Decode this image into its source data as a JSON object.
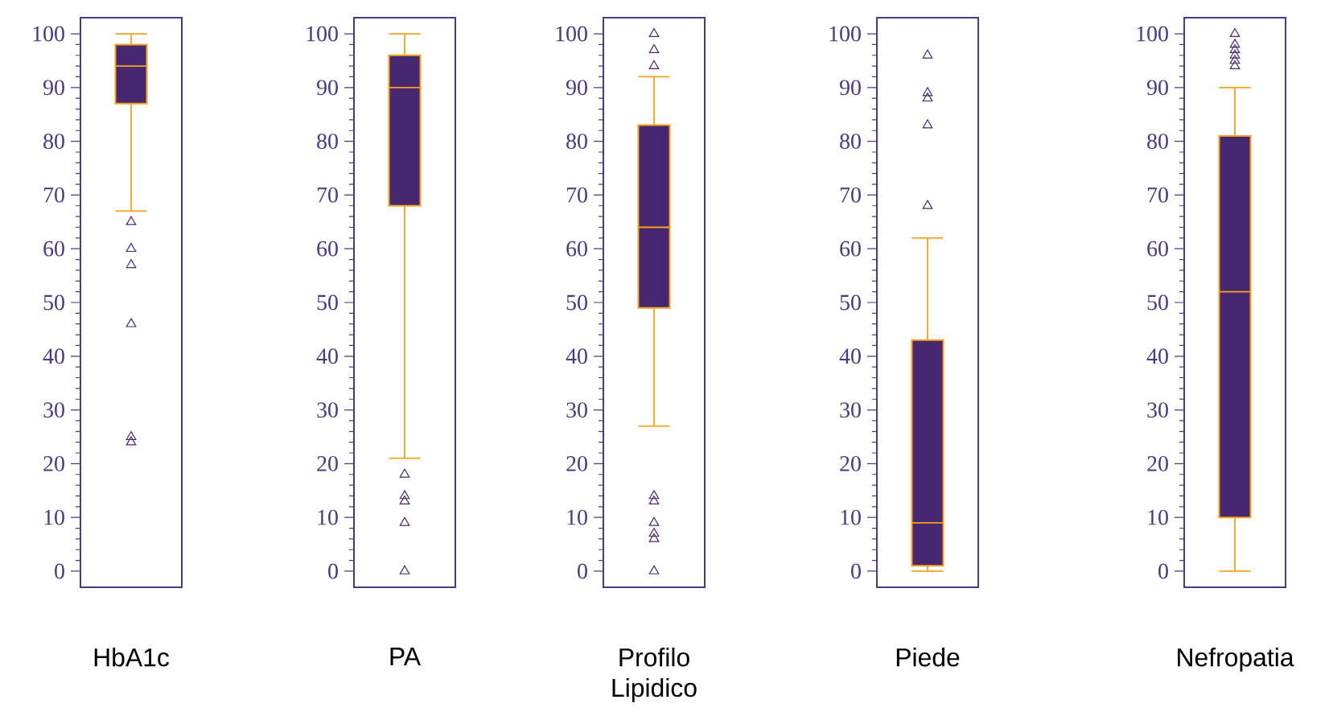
{
  "chart_data": [
    {
      "type": "box",
      "categories": [
        "HbA1c"
      ],
      "color": "#472870",
      "marker": "triangle",
      "ylim": [
        -3,
        103
      ],
      "yticks": [
        0,
        10,
        20,
        30,
        40,
        50,
        60,
        70,
        80,
        90,
        100
      ],
      "boxes": [
        {
          "low": 67,
          "q1": 87,
          "median": 94,
          "q3": 98,
          "high": 100,
          "outliers": [
            65,
            60,
            57,
            46,
            25,
            24
          ]
        }
      ]
    },
    {
      "type": "box",
      "categories": [
        "PA"
      ],
      "color": "#472870",
      "marker": "triangle",
      "ylim": [
        -3,
        103
      ],
      "yticks": [
        0,
        10,
        20,
        30,
        40,
        50,
        60,
        70,
        80,
        90,
        100
      ],
      "boxes": [
        {
          "low": 21,
          "q1": 68,
          "median": 90,
          "q3": 96,
          "high": 100,
          "outliers": [
            18,
            14,
            13,
            9,
            0
          ]
        }
      ]
    },
    {
      "type": "box",
      "categories": [
        "Profilo Lipidico"
      ],
      "color": "#472870",
      "marker": "triangle",
      "ylim": [
        -3,
        103
      ],
      "yticks": [
        0,
        10,
        20,
        30,
        40,
        50,
        60,
        70,
        80,
        90,
        100
      ],
      "boxes": [
        {
          "low": 27,
          "q1": 49,
          "median": 64,
          "q3": 83,
          "high": 92,
          "outliers": [
            100,
            97,
            94,
            14,
            13,
            9,
            7,
            6,
            0
          ]
        }
      ]
    },
    {
      "type": "box",
      "categories": [
        "Piede"
      ],
      "color": "#472870",
      "marker": "triangle",
      "ylim": [
        -3,
        103
      ],
      "yticks": [
        0,
        10,
        20,
        30,
        40,
        50,
        60,
        70,
        80,
        90,
        100
      ],
      "boxes": [
        {
          "low": 0,
          "q1": 1,
          "median": 9,
          "q3": 43,
          "high": 62,
          "outliers": [
            96,
            89,
            88,
            83,
            68
          ]
        }
      ]
    },
    {
      "type": "box",
      "categories": [
        "Nefropatia"
      ],
      "color": "#472870",
      "marker": "triangle",
      "ylim": [
        -3,
        103
      ],
      "yticks": [
        0,
        10,
        20,
        30,
        40,
        50,
        60,
        70,
        80,
        90,
        100
      ],
      "boxes": [
        {
          "low": 0,
          "q1": 10,
          "median": 52,
          "q3": 81,
          "high": 90,
          "outliers": [
            100,
            98,
            97,
            96,
            95,
            94
          ]
        }
      ]
    }
  ]
}
